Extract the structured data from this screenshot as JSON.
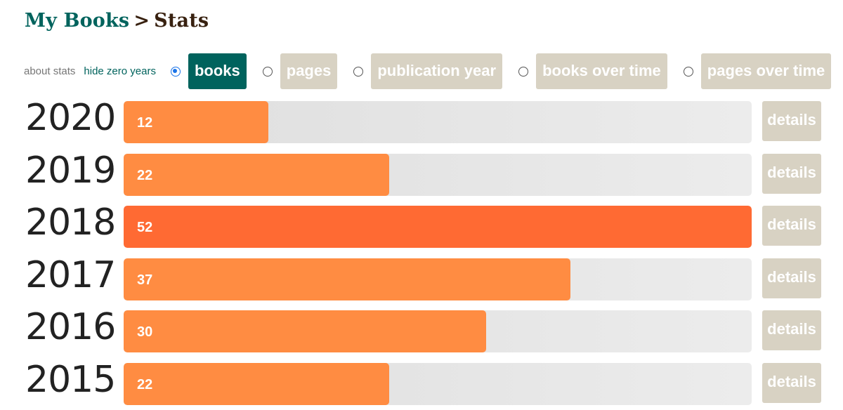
{
  "breadcrumb": {
    "root": "My Books",
    "separator": ">",
    "current": "Stats"
  },
  "controls": {
    "about_label": "about stats",
    "hide_zero_label": "hide zero years",
    "tabs": [
      {
        "label": "books",
        "checked": true
      },
      {
        "label": "pages",
        "checked": false
      },
      {
        "label": "publication year",
        "checked": false
      },
      {
        "label": "books over time",
        "checked": false
      },
      {
        "label": "pages over time",
        "checked": false
      }
    ]
  },
  "colors": {
    "brand": "#00635d",
    "bar": "#ff8c42",
    "bar_max": "#ff6a33",
    "track": "#e6e6e6",
    "tab_inactive": "#d8d2c3"
  },
  "chart_data": {
    "type": "bar",
    "orientation": "horizontal",
    "categories": [
      "2020",
      "2019",
      "2018",
      "2017",
      "2016",
      "2015"
    ],
    "values": [
      12,
      22,
      52,
      37,
      30,
      22
    ],
    "max": 52
  },
  "rows": [
    {
      "year": "2020",
      "value": "12",
      "details_label": "details"
    },
    {
      "year": "2019",
      "value": "22",
      "details_label": "details"
    },
    {
      "year": "2018",
      "value": "52",
      "details_label": "details"
    },
    {
      "year": "2017",
      "value": "37",
      "details_label": "details"
    },
    {
      "year": "2016",
      "value": "30",
      "details_label": "details"
    },
    {
      "year": "2015",
      "value": "22",
      "details_label": "details"
    }
  ]
}
